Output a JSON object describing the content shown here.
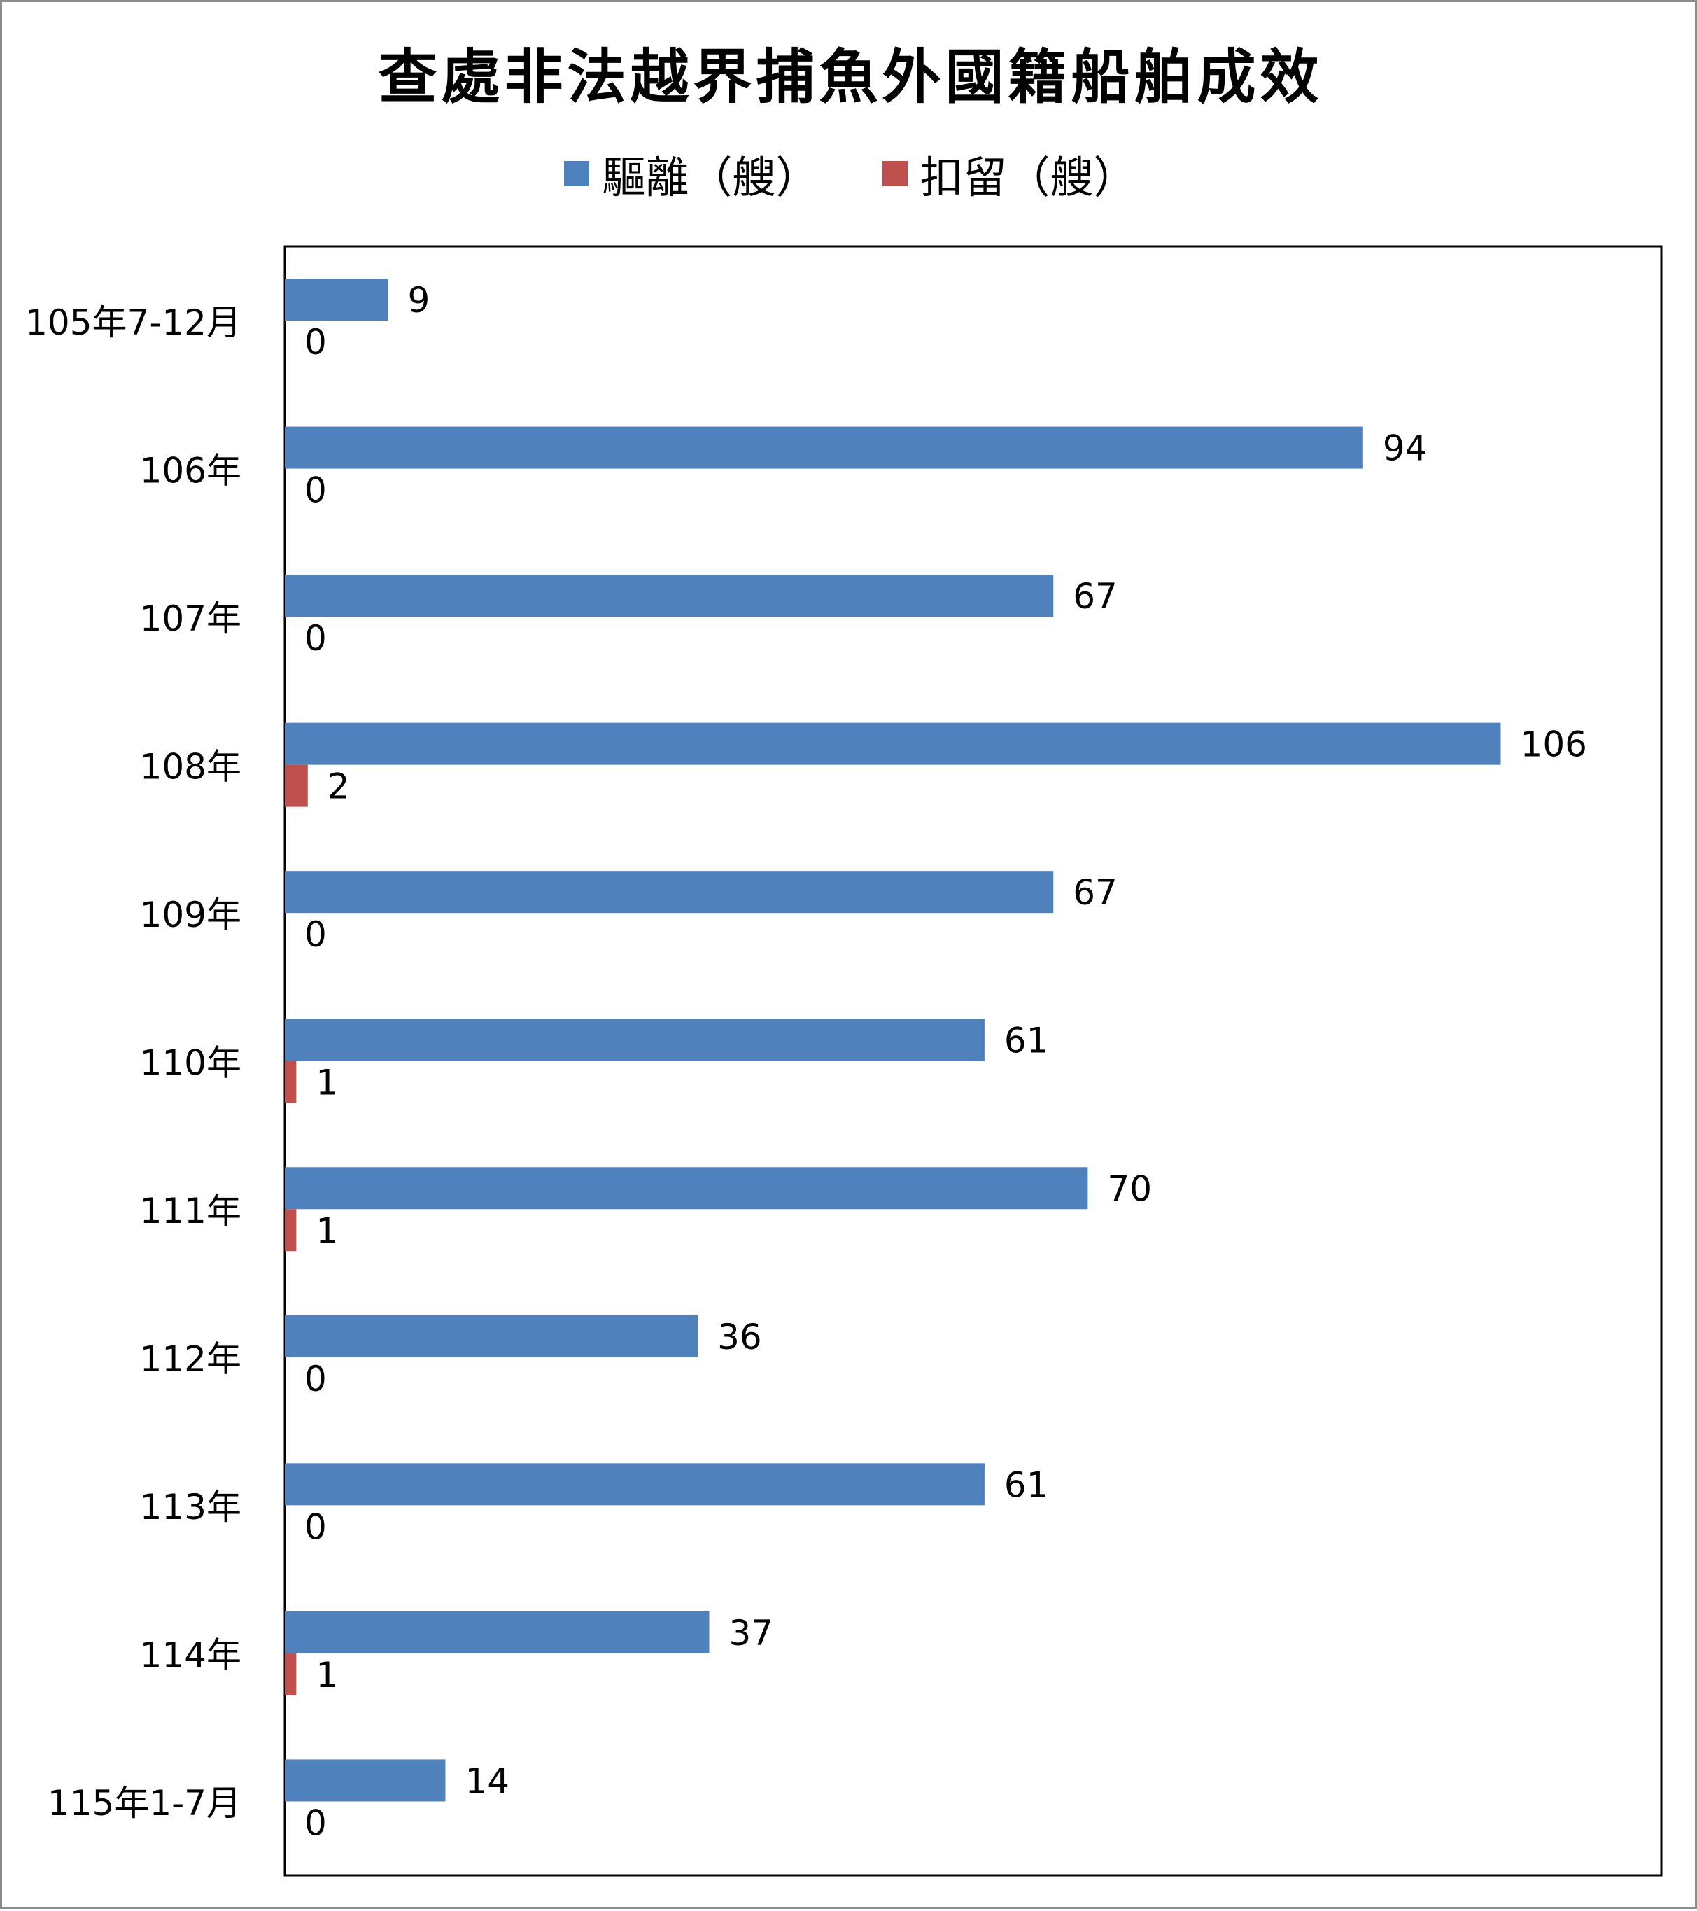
{
  "chart_data": {
    "type": "bar",
    "orientation": "horizontal",
    "title": "查處非法越界捕魚外國籍船舶成效",
    "xlabel": "",
    "ylabel": "",
    "xlim": [
      0,
      120
    ],
    "grid": false,
    "legend_position": "top",
    "categories": [
      "105年7-12月",
      "106年",
      "107年",
      "108年",
      "109年",
      "110年",
      "111年",
      "112年",
      "113年",
      "114年",
      "115年1-7月"
    ],
    "series": [
      {
        "name": "驅離（艘）",
        "color": "#4F81BD",
        "values": [
          9,
          94,
          67,
          106,
          67,
          61,
          70,
          36,
          61,
          37,
          14
        ]
      },
      {
        "name": "扣留（艘）",
        "color": "#C0504D",
        "values": [
          0,
          0,
          0,
          2,
          0,
          1,
          1,
          0,
          0,
          1,
          0
        ]
      }
    ]
  }
}
